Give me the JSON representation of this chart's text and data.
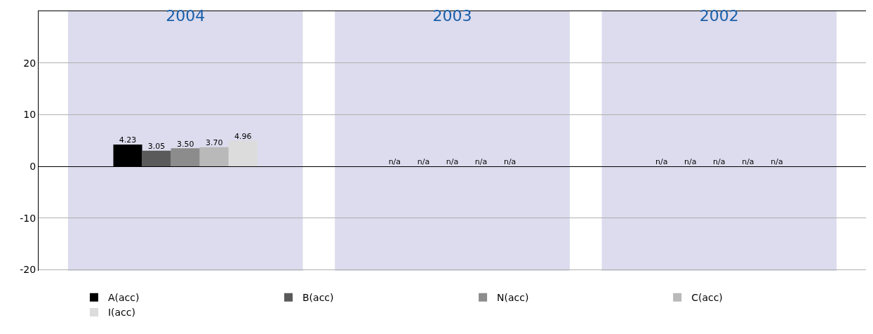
{
  "chart_data": {
    "type": "bar",
    "categories": [
      "2004",
      "2003",
      "2002"
    ],
    "series": [
      {
        "name": "A(acc)",
        "color": "#000000",
        "values": [
          4.23,
          null,
          null
        ],
        "value_labels": [
          "4.23",
          "n/a",
          "n/a"
        ]
      },
      {
        "name": "B(acc)",
        "color": "#5a5a5a",
        "values": [
          3.05,
          null,
          null
        ],
        "value_labels": [
          "3.05",
          "n/a",
          "n/a"
        ]
      },
      {
        "name": "N(acc)",
        "color": "#8c8c8c",
        "values": [
          3.5,
          null,
          null
        ],
        "value_labels": [
          "3.50",
          "n/a",
          "n/a"
        ]
      },
      {
        "name": "C(acc)",
        "color": "#b9b9b9",
        "values": [
          3.7,
          null,
          null
        ],
        "value_labels": [
          "3.70",
          "n/a",
          "n/a"
        ]
      },
      {
        "name": "I(acc)",
        "color": "#dcdcdc",
        "values": [
          4.96,
          null,
          null
        ],
        "value_labels": [
          "4.96",
          "n/a",
          "n/a"
        ]
      }
    ],
    "ylim": [
      -20.2,
      30
    ],
    "yticks": [
      -20,
      -10,
      0,
      10,
      20
    ],
    "grid": "y",
    "legend": "bottom",
    "bands": [
      {
        "axis": "x",
        "from": "2004",
        "to": "2004",
        "color": "#dcdcee"
      },
      {
        "axis": "x",
        "from": "2003",
        "to": "2003",
        "color": "#dcdcee"
      },
      {
        "axis": "x",
        "from": "2002",
        "to": "2002",
        "color": "#dcdcee"
      }
    ]
  }
}
